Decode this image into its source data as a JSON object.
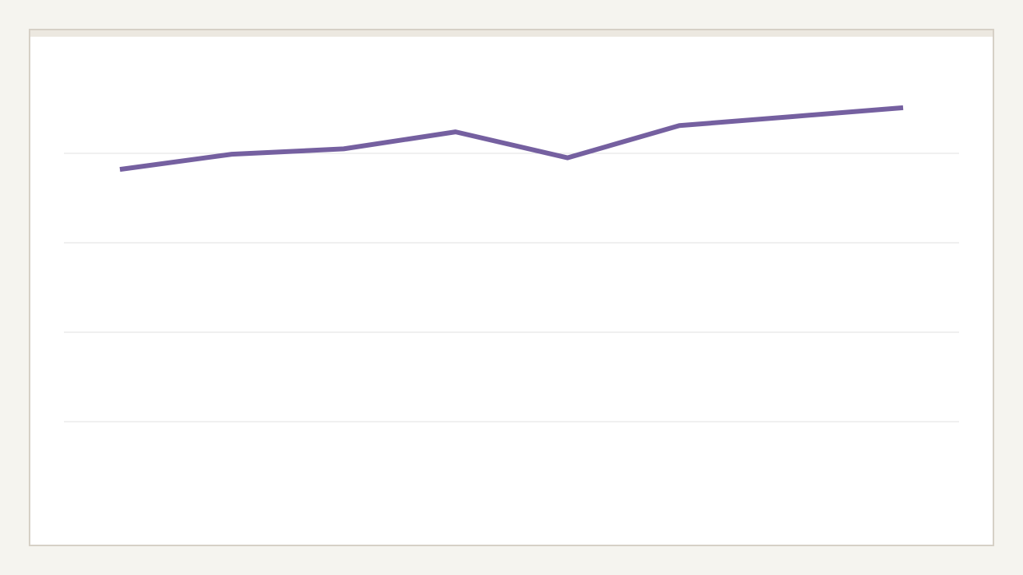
{
  "chart_data": {
    "type": "line",
    "categories": [
      null,
      null,
      null,
      null,
      null,
      null,
      null,
      null
    ],
    "series": [
      {
        "color": "#7560a0",
        "values": [
          3.82,
          3.99,
          4.05,
          4.24,
          3.95,
          4.31,
          4.41,
          4.51
        ]
      }
    ],
    "ylim": [
      0,
      5
    ],
    "yticks": [
      1,
      2,
      3,
      4
    ],
    "grid": true
  }
}
